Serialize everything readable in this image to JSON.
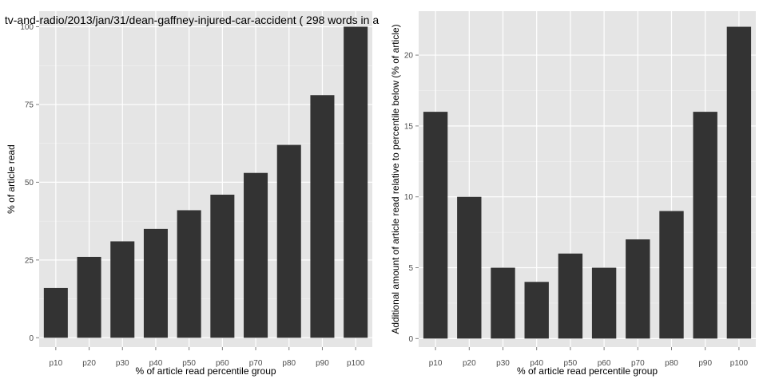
{
  "colors": {
    "panel_background": "#e5e5e5",
    "grid_major": "#ffffff",
    "grid_minor": "#f2f2f2",
    "bar_fill": "#333333",
    "tick_text": "#4d4d4d"
  },
  "chart_data": [
    {
      "type": "bar",
      "title": "tv-and-radio/2013/jan/31/dean-gaffney-injured-car-accident ( 298 words in a",
      "xlabel": "% of article read percentile group",
      "ylabel": "% of article read",
      "categories": [
        "p10",
        "p20",
        "p30",
        "p40",
        "p50",
        "p60",
        "p70",
        "p80",
        "p90",
        "p100"
      ],
      "values": [
        16,
        26,
        31,
        35,
        41,
        46,
        53,
        62,
        78,
        100
      ],
      "ylim": [
        -3,
        105
      ],
      "yticks": [
        0,
        25,
        50,
        75,
        100
      ],
      "grid": true
    },
    {
      "type": "bar",
      "title": "",
      "xlabel": "% of article read percentile group",
      "ylabel": "Additional amount of article read relative to percentile below (% of article)",
      "categories": [
        "p10",
        "p20",
        "p30",
        "p40",
        "p50",
        "p60",
        "p70",
        "p80",
        "p90",
        "p100"
      ],
      "values": [
        16,
        10,
        5,
        4,
        6,
        5,
        7,
        9,
        16,
        22
      ],
      "ylim": [
        -0.6,
        23.1
      ],
      "yticks": [
        0,
        5,
        10,
        15,
        20
      ],
      "grid": true
    }
  ]
}
